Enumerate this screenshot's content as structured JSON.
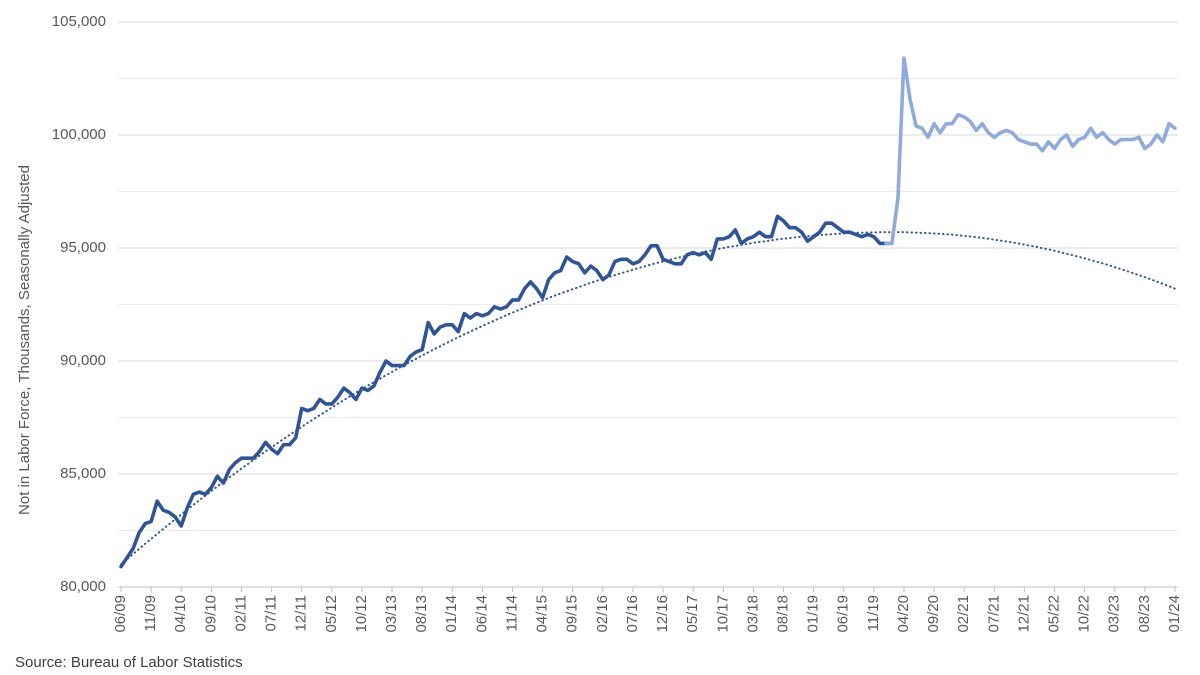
{
  "chart_data": {
    "type": "line",
    "y_label": "Not in Labor Force, Thousands, Seasonally Adjusted",
    "source": "Source: Bureau of Labor Statistics",
    "categories": [
      "06/09",
      null,
      null,
      null,
      null,
      "11/09",
      null,
      null,
      null,
      null,
      "04/10",
      null,
      null,
      null,
      null,
      "09/10",
      null,
      null,
      null,
      null,
      "02/11",
      null,
      null,
      null,
      null,
      "07/11",
      null,
      null,
      null,
      null,
      "12/11",
      null,
      null,
      null,
      null,
      "05/12",
      null,
      null,
      null,
      null,
      "10/12",
      null,
      null,
      null,
      null,
      "03/13",
      null,
      null,
      null,
      null,
      "08/13",
      null,
      null,
      null,
      null,
      "01/14",
      null,
      null,
      null,
      null,
      "06/14",
      null,
      null,
      null,
      null,
      "11/14",
      null,
      null,
      null,
      null,
      "04/15",
      null,
      null,
      null,
      null,
      "09/15",
      null,
      null,
      null,
      null,
      "02/16",
      null,
      null,
      null,
      null,
      "07/16",
      null,
      null,
      null,
      null,
      "12/16",
      null,
      null,
      null,
      null,
      "05/17",
      null,
      null,
      null,
      null,
      "10/17",
      null,
      null,
      null,
      null,
      "03/18",
      null,
      null,
      null,
      null,
      "08/18",
      null,
      null,
      null,
      null,
      "01/19",
      null,
      null,
      null,
      null,
      "06/19",
      null,
      null,
      null,
      null,
      "11/19",
      null,
      null,
      null,
      null,
      "04/20",
      null,
      null,
      null,
      null,
      "09/20",
      null,
      null,
      null,
      null,
      "02/21",
      null,
      null,
      null,
      null,
      "07/21",
      null,
      null,
      null,
      null,
      "12/21",
      null,
      null,
      null,
      null,
      "05/22",
      null,
      null,
      null,
      null,
      "10/22",
      null,
      null,
      null,
      null,
      "03/23",
      null,
      null,
      null,
      null,
      "08/23",
      null,
      null,
      null,
      null,
      "01/24"
    ],
    "series": [
      {
        "color": "#2f5597",
        "values": [
          80900,
          81300,
          81700,
          82400,
          82800,
          82900,
          83800,
          83400,
          83300,
          83100,
          82700,
          83500,
          84100,
          84200,
          84100,
          84400,
          84900,
          84600,
          85200,
          85500,
          85700,
          85700,
          85700,
          86000,
          86400,
          86100,
          85900,
          86300,
          86300,
          86600,
          87900,
          87800,
          87900,
          88300,
          88100,
          88100,
          88400,
          88800,
          88600,
          88300,
          88800,
          88700,
          88900,
          89500,
          90000,
          89800,
          89800,
          89800,
          90200,
          90400,
          90500,
          91700,
          91200,
          91500,
          91600,
          91600,
          91300,
          92100,
          91900,
          92100,
          92000,
          92100,
          92400,
          92300,
          92400,
          92700,
          92700,
          93200,
          93500,
          93200,
          92800,
          93600,
          93900,
          94000,
          94600,
          94400,
          94300,
          93900,
          94200,
          94000,
          93600,
          93800,
          94400,
          94500,
          94500,
          94300,
          94400,
          94700,
          95100,
          95100,
          94500,
          94400,
          94300,
          94300,
          94700,
          94800,
          94700,
          94800,
          94500,
          95400,
          95400,
          95500,
          95800,
          95200,
          95400,
          95500,
          95700,
          95500,
          95500,
          96400,
          96200,
          95900,
          95900,
          95700,
          95300,
          95500,
          95700,
          96100,
          96100,
          95900,
          95700,
          95700,
          95600,
          95500,
          95600,
          95500,
          95200,
          95200,
          null,
          null,
          null,
          null,
          null,
          null,
          null,
          null,
          null,
          null,
          null,
          null,
          null,
          null,
          null,
          null,
          null,
          null,
          null,
          null,
          null,
          null,
          null,
          null,
          null,
          null,
          null,
          null,
          null,
          null,
          null,
          null,
          null,
          null,
          null,
          null,
          null,
          null,
          null,
          null,
          null,
          null,
          null,
          null,
          null,
          null,
          null,
          null
        ]
      },
      {
        "color": "#8faadc",
        "values": [
          null,
          null,
          null,
          null,
          null,
          null,
          null,
          null,
          null,
          null,
          null,
          null,
          null,
          null,
          null,
          null,
          null,
          null,
          null,
          null,
          null,
          null,
          null,
          null,
          null,
          null,
          null,
          null,
          null,
          null,
          null,
          null,
          null,
          null,
          null,
          null,
          null,
          null,
          null,
          null,
          null,
          null,
          null,
          null,
          null,
          null,
          null,
          null,
          null,
          null,
          null,
          null,
          null,
          null,
          null,
          null,
          null,
          null,
          null,
          null,
          null,
          null,
          null,
          null,
          null,
          null,
          null,
          null,
          null,
          null,
          null,
          null,
          null,
          null,
          null,
          null,
          null,
          null,
          null,
          null,
          null,
          null,
          null,
          null,
          null,
          null,
          null,
          null,
          null,
          null,
          null,
          null,
          null,
          null,
          null,
          null,
          null,
          null,
          null,
          null,
          null,
          null,
          null,
          null,
          null,
          null,
          null,
          null,
          null,
          null,
          null,
          null,
          null,
          null,
          null,
          null,
          null,
          null,
          null,
          null,
          null,
          null,
          null,
          null,
          null,
          null,
          null,
          95200,
          95200,
          97200,
          103400,
          101600,
          100400,
          100300,
          99900,
          100500,
          100100,
          100500,
          100500,
          100900,
          100800,
          100600,
          100200,
          100500,
          100100,
          99900,
          100100,
          100200,
          100100,
          99800,
          99700,
          99600,
          99600,
          99300,
          99700,
          99400,
          99800,
          100000,
          99500,
          99800,
          99900,
          100300,
          99900,
          100100,
          99800,
          99600,
          99800,
          99800,
          99800,
          99900,
          99400,
          99600,
          100000,
          99700,
          100500,
          100300
        ]
      },
      {
        "color": "#2f5597",
        "style": "dotted",
        "values": [
          81000,
          81230,
          81460,
          81680,
          81910,
          82130,
          82350,
          82570,
          82780,
          83000,
          83210,
          83420,
          83630,
          83840,
          84040,
          84250,
          84450,
          84650,
          84850,
          85040,
          85240,
          85430,
          85620,
          85810,
          86000,
          86180,
          86370,
          86550,
          86730,
          86910,
          87090,
          87260,
          87430,
          87600,
          87770,
          87940,
          88110,
          88270,
          88430,
          88600,
          88750,
          88910,
          89070,
          89220,
          89370,
          89520,
          89670,
          89820,
          89960,
          90100,
          90240,
          90380,
          90520,
          90650,
          90790,
          90920,
          91050,
          91180,
          91300,
          91430,
          91550,
          91670,
          91790,
          91910,
          92030,
          92140,
          92250,
          92360,
          92470,
          92580,
          92680,
          92790,
          92890,
          92990,
          93080,
          93180,
          93270,
          93370,
          93460,
          93550,
          93630,
          93720,
          93800,
          93880,
          93960,
          94040,
          94120,
          94190,
          94270,
          94340,
          94400,
          94470,
          94540,
          94600,
          94660,
          94720,
          94780,
          94840,
          94890,
          94950,
          95000,
          95050,
          95090,
          95140,
          95180,
          95230,
          95270,
          95300,
          95340,
          95380,
          95410,
          95440,
          95470,
          95500,
          95520,
          95550,
          95570,
          95590,
          95610,
          95630,
          95640,
          95660,
          95670,
          95680,
          95690,
          95690,
          95700,
          95700,
          95700,
          95700,
          95700,
          95690,
          95680,
          95670,
          95660,
          95640,
          95630,
          95610,
          95590,
          95560,
          95540,
          95510,
          95480,
          95450,
          95410,
          95370,
          95330,
          95290,
          95250,
          95200,
          95150,
          95100,
          95050,
          94990,
          94940,
          94880,
          94810,
          94750,
          94680,
          94610,
          94540,
          94470,
          94390,
          94320,
          94240,
          94150,
          94070,
          93980,
          93890,
          93800,
          93710,
          93610,
          93510,
          93410,
          93310,
          93200
        ]
      }
    ],
    "ylim": [
      80000,
      105000
    ],
    "yticks": [
      {
        "value": 80000,
        "label": "80,000"
      },
      {
        "value": 85000,
        "label": "85,000"
      },
      {
        "value": 90000,
        "label": "90,000"
      },
      {
        "value": 95000,
        "label": "95,000"
      },
      {
        "value": 100000,
        "label": "100,000"
      },
      {
        "value": 105000,
        "label": "105,000"
      }
    ],
    "minor_yticks": [
      82500,
      87500,
      92500,
      97500,
      102500
    ],
    "grid": true
  }
}
